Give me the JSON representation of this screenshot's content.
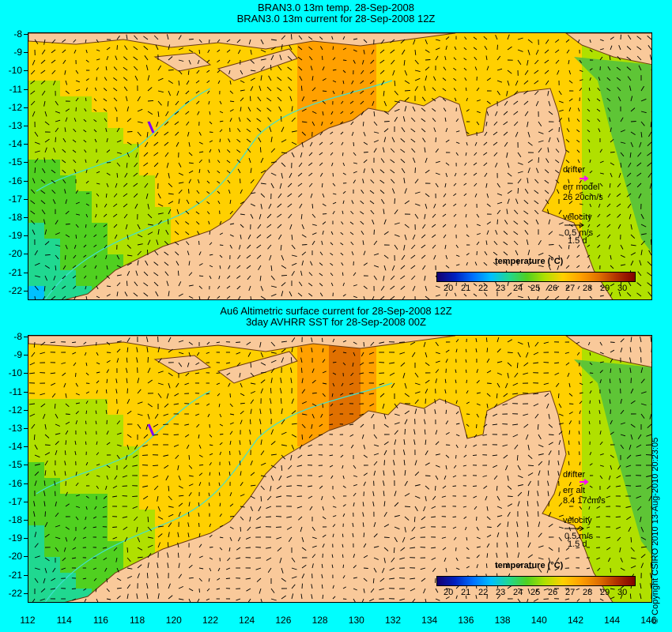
{
  "top_panel": {
    "title_line1": "BRAN3.0 13m temp. 28-Sep-2008",
    "title_line2": "BRAN3.0 13m current for 28-Sep-2008 12Z",
    "legend": {
      "drifter": "drifter",
      "err_label": "err model",
      "err_value": "26 20cm/s",
      "velocity": "velocity",
      "speed": "0.5 m/s",
      "duration": "1.5 d"
    }
  },
  "bottom_panel": {
    "title_line1": "Au6 Altimetric surface current for 28-Sep-2008 12Z",
    "title_line2": "3day AVHRR SST for 28-Sep-2008 00Z",
    "legend": {
      "drifter": "drifter",
      "err_label": "err alt",
      "err_value": "8.4 17cm/s",
      "velocity": "velocity",
      "speed": "0.5 m/s",
      "duration": "1.5 d"
    }
  },
  "colorbar": {
    "title": "temperature (°C)",
    "labels": [
      "20",
      "21",
      "22",
      "23",
      "24",
      "25",
      "26",
      "27",
      "28",
      "29",
      "30"
    ],
    "colors": [
      "#140070",
      "#0020c0",
      "#0070ff",
      "#00c0ff",
      "#20d890",
      "#50d020",
      "#b0e000",
      "#ffd000",
      "#ffa000",
      "#e07000",
      "#b03000",
      "#800000"
    ]
  },
  "y_labels": [
    "-8",
    "-9",
    "-10",
    "-11",
    "-12",
    "-13",
    "-14",
    "-15",
    "-16",
    "-17",
    "-18",
    "-19",
    "-20",
    "-21",
    "-22"
  ],
  "x_labels": [
    "112",
    "114",
    "116",
    "118",
    "120",
    "122",
    "124",
    "126",
    "128",
    "130",
    "132",
    "134",
    "136",
    "138",
    "140",
    "142",
    "144",
    "146"
  ],
  "copyright": "© Copyright CSIRO 2010   13-Aug-2010 20:23:05",
  "colors": {
    "background": "#00fefe",
    "land": "#f9c99a",
    "isobath": "#40e0d0",
    "drifter": "#ff00ff"
  }
}
